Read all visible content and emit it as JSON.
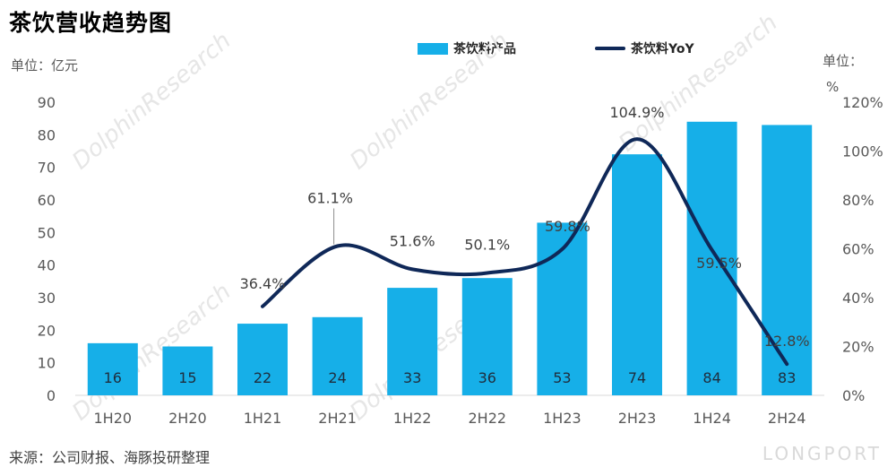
{
  "page": {
    "title": "茶饮营收趋势图",
    "unit_left": "单位：亿元",
    "unit_right_line1": "单位：",
    "unit_right_line2": "%",
    "source": "来源：公司财报、海豚投研整理",
    "brand": "LONGPORT",
    "watermark": "DolphinResearch",
    "watermark_cn": "海豚投研"
  },
  "colors": {
    "bar": "#16AFE8",
    "line": "#0F2858",
    "axis_text": "#595959",
    "bar_label": "#1F2D3D"
  },
  "chart_data": {
    "type": "bar",
    "categories": [
      "1H20",
      "2H20",
      "1H21",
      "2H21",
      "1H22",
      "2H22",
      "1H23",
      "2H23",
      "1H24",
      "2H24"
    ],
    "series": [
      {
        "name": "茶饮料产品",
        "type": "bar",
        "axis": "left",
        "values": [
          16,
          15,
          22,
          24,
          33,
          36,
          53,
          74,
          84,
          83
        ]
      },
      {
        "name": "茶饮料YoY",
        "type": "line",
        "axis": "right",
        "values": [
          null,
          null,
          36.4,
          61.1,
          51.6,
          50.1,
          59.8,
          104.9,
          59.5,
          12.8
        ],
        "labels": [
          null,
          null,
          "36.4%",
          "61.1%",
          "51.6%",
          "50.1%",
          "59.8%",
          "104.9%",
          "59.5%",
          "12.8%"
        ]
      }
    ],
    "ylim_left": [
      0,
      90
    ],
    "yticks_left": [
      "0",
      "10",
      "20",
      "30",
      "40",
      "50",
      "60",
      "70",
      "80",
      "90"
    ],
    "ylim_right": [
      0,
      120
    ],
    "yticks_right": [
      "0%",
      "20%",
      "40%",
      "60%",
      "80%",
      "100%",
      "120%"
    ],
    "legend_position": "top-center",
    "grid": false
  }
}
